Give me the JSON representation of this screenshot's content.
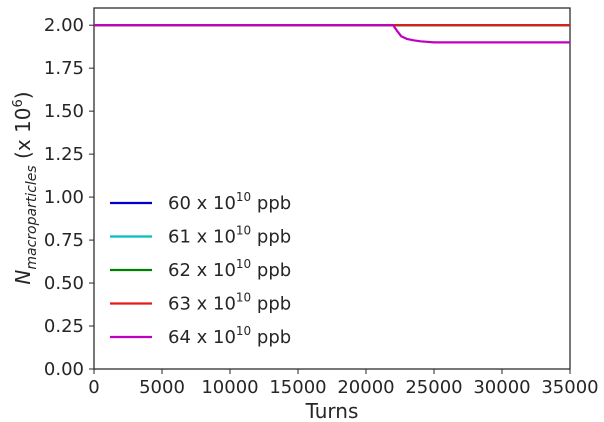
{
  "chart_data": {
    "type": "line",
    "xlabel": "Turns",
    "ylabel_main": "N",
    "ylabel_sub": "macroparticles",
    "ylabel_unit_prefix": " (x 10",
    "ylabel_unit_exp": "6",
    "ylabel_unit_suffix": ")",
    "xlim": [
      0,
      35000
    ],
    "ylim": [
      0.0,
      2.1
    ],
    "x_ticks": [
      0,
      5000,
      10000,
      15000,
      20000,
      25000,
      30000,
      35000
    ],
    "x_tick_labels": [
      "0",
      "5000",
      "10000",
      "15000",
      "20000",
      "25000",
      "30000",
      "35000"
    ],
    "y_ticks": [
      0.0,
      0.25,
      0.5,
      0.75,
      1.0,
      1.25,
      1.5,
      1.75,
      2.0
    ],
    "y_tick_labels": [
      "0.00",
      "0.25",
      "0.50",
      "0.75",
      "1.00",
      "1.25",
      "1.50",
      "1.75",
      "2.00"
    ],
    "grid": false,
    "legend_position": "lower-left",
    "series": [
      {
        "name_prefix": "60 x 10",
        "name_exp": "10",
        "name_suffix": " ppb",
        "color": "#0000cc",
        "x": [
          0,
          35000
        ],
        "y": [
          2.0,
          2.0
        ]
      },
      {
        "name_prefix": "61 x 10",
        "name_exp": "10",
        "name_suffix": " ppb",
        "color": "#00bfbf",
        "x": [
          0,
          35000
        ],
        "y": [
          2.0,
          2.0
        ]
      },
      {
        "name_prefix": "62 x 10",
        "name_exp": "10",
        "name_suffix": " ppb",
        "color": "#007f00",
        "x": [
          0,
          35000
        ],
        "y": [
          2.0,
          2.0
        ]
      },
      {
        "name_prefix": "63 x 10",
        "name_exp": "10",
        "name_suffix": " ppb",
        "color": "#e31a1c",
        "x": [
          0,
          35000
        ],
        "y": [
          2.0,
          2.0
        ]
      },
      {
        "name_prefix": "64 x 10",
        "name_exp": "10",
        "name_suffix": " ppb",
        "color": "#c000c0",
        "x": [
          0,
          22000,
          22300,
          22600,
          23000,
          23500,
          24000,
          25000,
          27000,
          35000
        ],
        "y": [
          2.0,
          2.0,
          1.965,
          1.935,
          1.92,
          1.912,
          1.906,
          1.9,
          1.9,
          1.9
        ]
      }
    ]
  }
}
